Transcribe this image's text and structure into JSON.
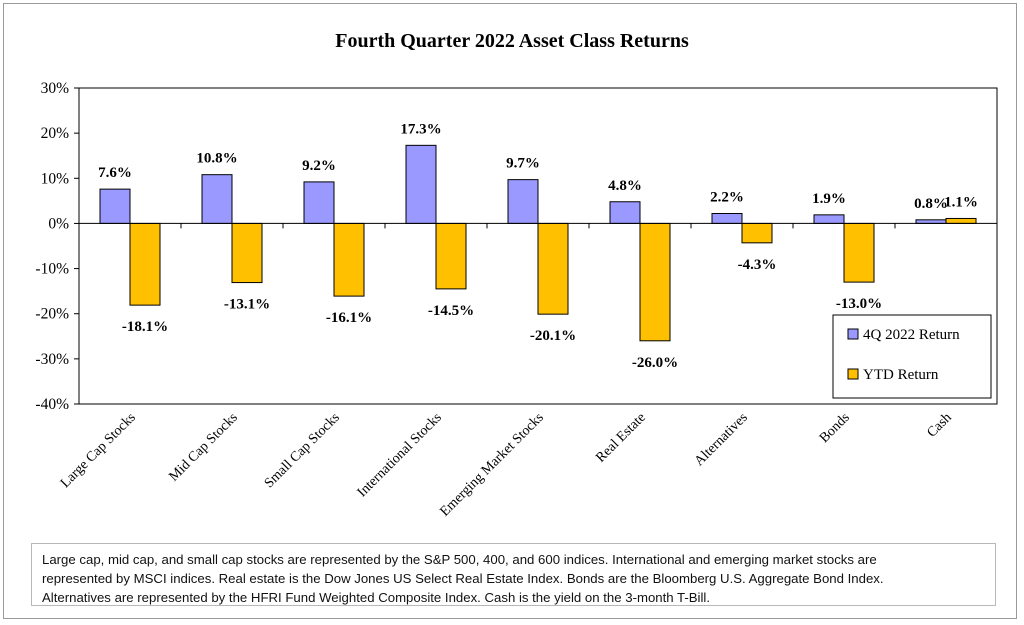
{
  "chart_data": {
    "type": "bar",
    "title": "Fourth Quarter 2022 Asset Class Returns",
    "categories": [
      "Large Cap Stocks",
      "Mid Cap Stocks",
      "Small Cap Stocks",
      "International Stocks",
      "Emerging Market Stocks",
      "Real Estate",
      "Alternatives",
      "Bonds",
      "Cash"
    ],
    "series": [
      {
        "name": "4Q 2022 Return",
        "color": "#9999ff",
        "values": [
          7.6,
          10.8,
          9.2,
          17.3,
          9.7,
          4.8,
          2.2,
          1.9,
          0.8
        ],
        "labels": [
          "7.6%",
          "10.8%",
          "9.2%",
          "17.3%",
          "9.7%",
          "4.8%",
          "2.2%",
          "1.9%",
          "0.8%"
        ]
      },
      {
        "name": "YTD Return",
        "color": "#ffc000",
        "values": [
          -18.1,
          -13.1,
          -16.1,
          -14.5,
          -20.1,
          -26.0,
          -4.3,
          -13.0,
          1.1
        ],
        "labels": [
          "-18.1%",
          "-13.1%",
          "-16.1%",
          "-14.5%",
          "-20.1%",
          "-26.0%",
          "-4.3%",
          "-13.0%",
          "1.1%"
        ]
      }
    ],
    "ylim": [
      -40,
      30
    ],
    "yticks": [
      30,
      20,
      10,
      0,
      -10,
      -20,
      -30,
      -40
    ],
    "ytick_labels": [
      "30%",
      "20%",
      "10%",
      "0%",
      "-10%",
      "-20%",
      "-30%",
      "-40%"
    ],
    "xlabel": "",
    "ylabel": "",
    "legend_position": "bottom-right",
    "grid": false
  },
  "footnote": {
    "lines": [
      "Large cap, mid cap, and small cap stocks are represented by the S&P 500, 400, and 600 indices.  International and emerging market stocks are",
      "represented by MSCI indices.  Real estate is the Dow Jones US Select Real Estate Index.  Bonds are the Bloomberg U.S. Aggregate Bond Index.",
      "Alternatives are represented by the HFRI Fund Weighted Composite Index.  Cash is the yield on the 3-month T-Bill."
    ]
  }
}
